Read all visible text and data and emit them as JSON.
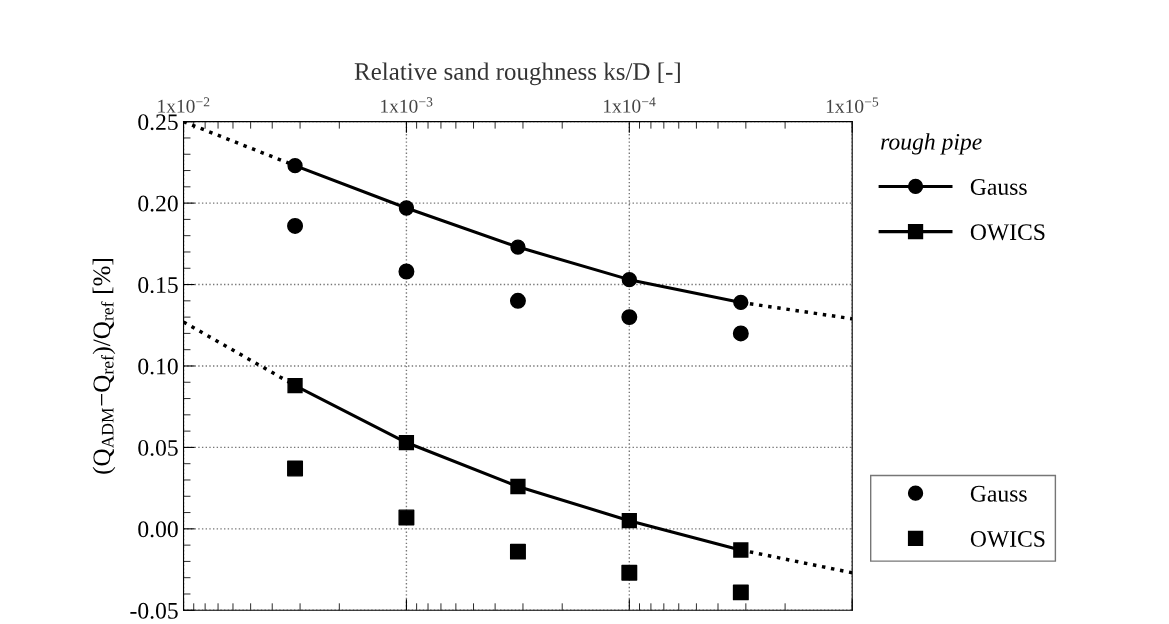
{
  "chart_data": {
    "type": "line",
    "xlabel": "Relative sand roughness ks/D [-]",
    "ylabel": "(Q$_{ADM}$−Q$_{ref}$)/Q$_{ref}$ [%]",
    "legend_title": "rough pipe",
    "log": "x",
    "xlim": [
      0.01,
      1e-05
    ],
    "xticks": [
      {
        "value": 0.01,
        "label": "1x10$^{−2}$"
      },
      {
        "value": 0.001,
        "label": "1x10$^{−3}$"
      },
      {
        "value": 0.0001,
        "label": "1x10$^{−4}$"
      },
      {
        "value": 1e-05,
        "label": "1x10$^{−5}$"
      }
    ],
    "ylim": [
      -0.05,
      0.25
    ],
    "yticks": [
      {
        "value": -0.05,
        "label": "-0.05"
      },
      {
        "value": 0.0,
        "label": "0.00"
      },
      {
        "value": 0.05,
        "label": "0.05"
      },
      {
        "value": 0.1,
        "label": "0.10"
      },
      {
        "value": 0.15,
        "label": "0.15"
      },
      {
        "value": 0.2,
        "label": "0.20"
      },
      {
        "value": 0.25,
        "label": "0.25"
      }
    ],
    "grid": true,
    "legend": "right",
    "tick_labels": "xy",
    "series": [
      {
        "name": "Gauss",
        "marker": "circle",
        "line_style": "solid",
        "color": "#000000",
        "x": [
          0.00316,
          0.001,
          0.000316,
          0.0001,
          3.16e-05
        ],
        "values": [
          0.223,
          0.197,
          0.173,
          0.153,
          0.139
        ]
      },
      {
        "name": "OWICS",
        "marker": "square",
        "line_style": "solid",
        "color": "#000000",
        "x": [
          0.00316,
          0.001,
          0.000316,
          0.0001,
          3.16e-05
        ],
        "values": [
          0.088,
          0.053,
          0.026,
          0.005,
          -0.013
        ]
      },
      {
        "name": "Gauss",
        "type": "scatter",
        "marker": "circle",
        "color": "#000000",
        "x": [
          0.00316,
          0.001,
          0.000316,
          0.0001,
          3.16e-05
        ],
        "values": [
          0.186,
          0.158,
          0.14,
          0.13,
          0.12
        ]
      },
      {
        "name": "OWICS",
        "type": "scatter",
        "marker": "square",
        "color": "#000000",
        "x": [
          0.00316,
          0.001,
          0.000316,
          0.0001,
          3.16e-05
        ],
        "values": [
          0.037,
          0.007,
          -0.014,
          -0.027,
          -0.039
        ]
      },
      {
        "type": "line",
        "marker": "none",
        "line_style": "dotted",
        "color": "#000000",
        "x": [
          0.01,
          0.00316
        ],
        "values": [
          0.25,
          0.223
        ]
      },
      {
        "type": "line",
        "marker": "none",
        "line_style": "dotted",
        "color": "#000000",
        "x": [
          3.16e-05,
          1e-05
        ],
        "values": [
          0.139,
          0.129
        ]
      },
      {
        "type": "line",
        "marker": "none",
        "line_style": "dotted",
        "color": "#000000",
        "x": [
          0.01,
          0.00316
        ],
        "values": [
          0.127,
          0.088
        ]
      },
      {
        "type": "line",
        "marker": "none",
        "line_style": "dotted",
        "color": "#000000",
        "x": [
          3.16e-05,
          1e-05
        ],
        "values": [
          -0.013,
          -0.027
        ]
      }
    ]
  }
}
